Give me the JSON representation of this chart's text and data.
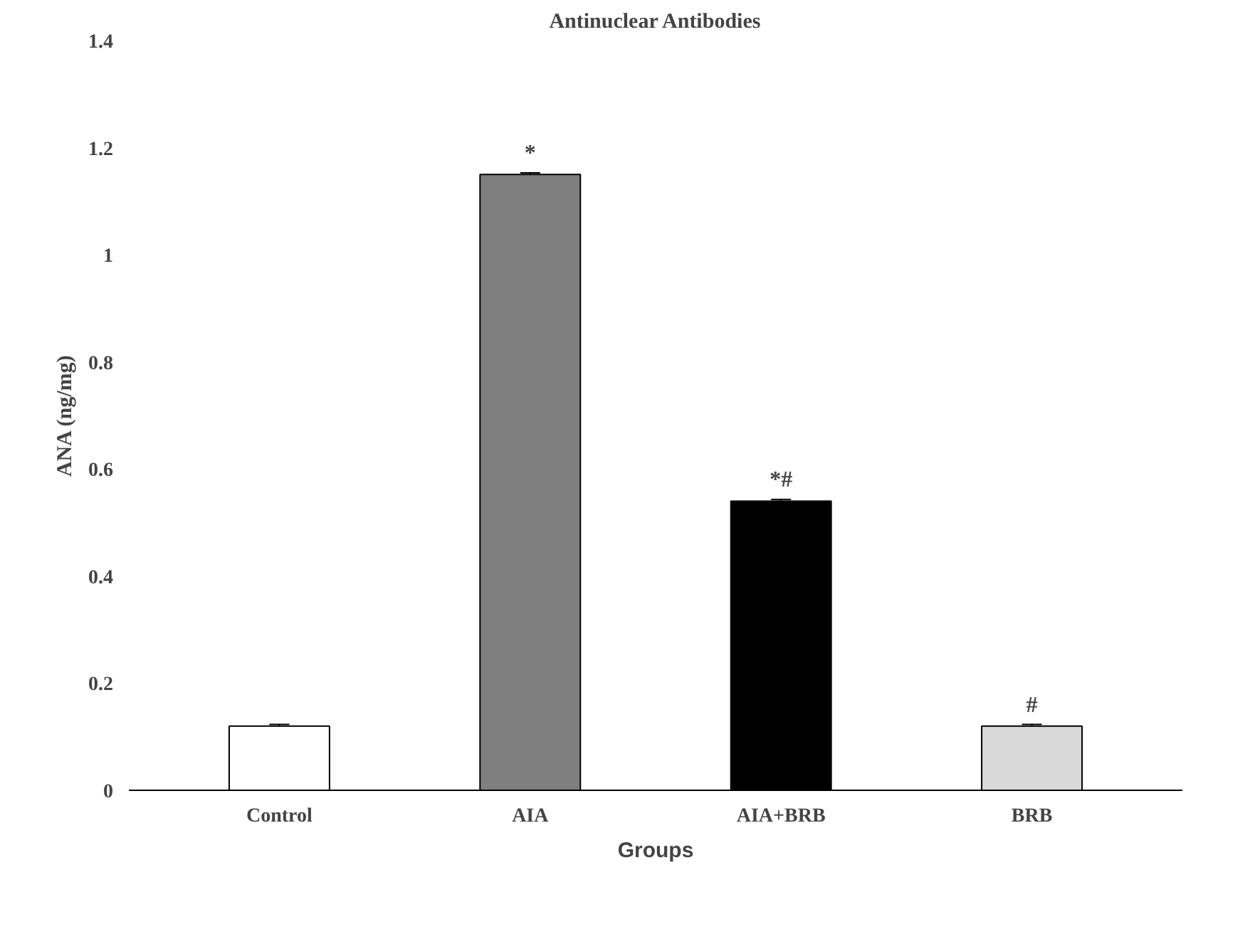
{
  "chart_data": {
    "type": "bar",
    "title": "Antinuclear Antibodies",
    "xlabel": "Groups",
    "ylabel": "ANA (ng/mg)",
    "categories": [
      "Control",
      "AIA",
      "AIA+BRB",
      "BRB"
    ],
    "values": [
      0.12,
      1.15,
      0.54,
      0.12
    ],
    "errors": [
      0.003,
      0.003,
      0.003,
      0.003
    ],
    "colors": [
      "#ffffff",
      "#7f7f7f",
      "#000000",
      "#d9d9d9"
    ],
    "ylim": [
      0,
      1.4
    ],
    "yticks": [
      0,
      0.2,
      0.4,
      0.6,
      0.8,
      1,
      1.2,
      1.4
    ],
    "annotations": [
      {
        "text": "*",
        "x": "AIA",
        "y": 1.15
      },
      {
        "text": "*#",
        "x": "AIA+BRB",
        "y": 0.54
      },
      {
        "text": "#",
        "x": "BRB",
        "y": 0.12
      }
    ],
    "grid": false
  }
}
